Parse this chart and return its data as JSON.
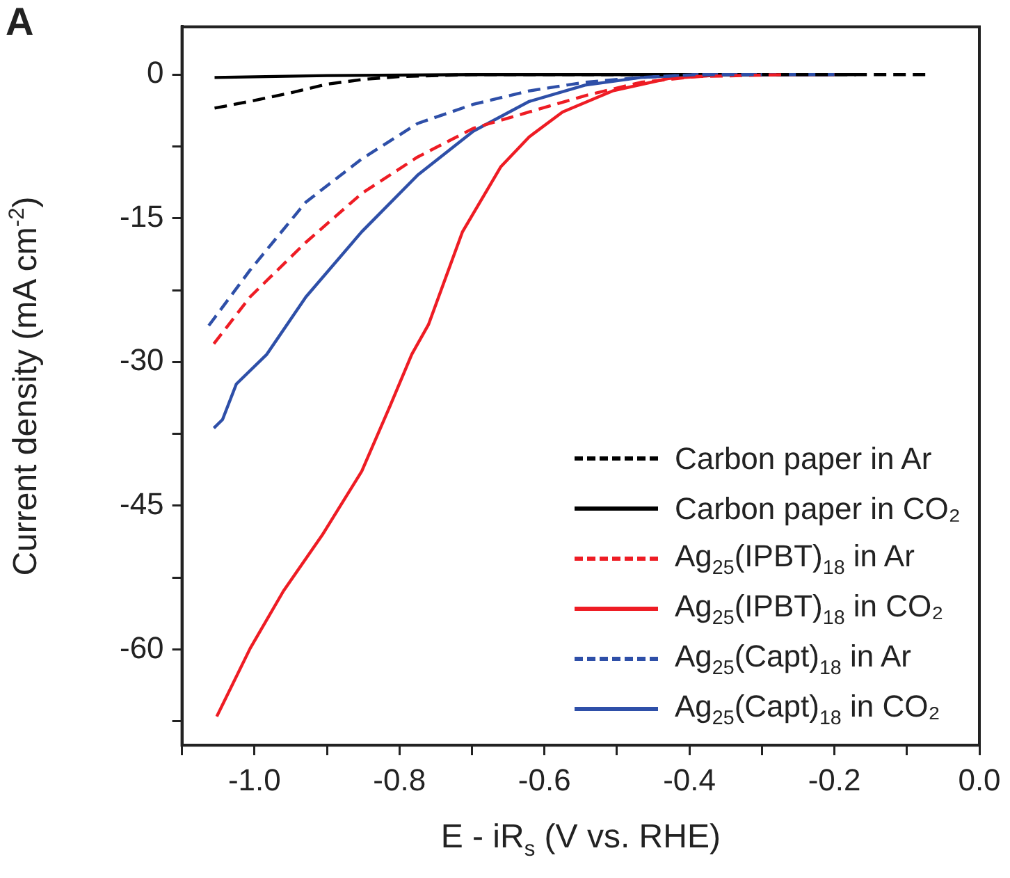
{
  "chart_data": {
    "type": "line",
    "title": "A",
    "xlabel": "E - iR$_{s}$ (V vs. RHE)",
    "ylabel": "Current density (mA cm$^{-2}$)",
    "xlim": [
      -1.1,
      0
    ],
    "xticks": [
      {
        "value": -1.1,
        "label": null
      },
      {
        "value": -1.0,
        "label": "-1.0"
      },
      {
        "value": -0.9,
        "label": null
      },
      {
        "value": -0.8,
        "label": "-0.8"
      },
      {
        "value": -0.7,
        "label": null
      },
      {
        "value": -0.6,
        "label": "-0.6"
      },
      {
        "value": -0.5,
        "label": null
      },
      {
        "value": -0.4,
        "label": "-0.4"
      },
      {
        "value": -0.3,
        "label": null
      },
      {
        "value": -0.2,
        "label": "-0.2"
      },
      {
        "value": -0.1,
        "label": null
      },
      {
        "value": 0,
        "label": "0.0"
      }
    ],
    "ylim": [
      -70,
      5
    ],
    "yticks": [
      0,
      {
        "value": -7.5,
        "label": null
      },
      -15,
      {
        "value": -22.5,
        "label": null
      },
      -30,
      {
        "value": -37.5,
        "label": null
      },
      -45,
      {
        "value": -52.5,
        "label": null
      },
      -60,
      {
        "value": -67.5,
        "label": null
      }
    ],
    "grid": false,
    "legend": "bottom right",
    "marker": "none",
    "series": [
      {
        "name": "Carbon paper in Ar",
        "color": "#000000",
        "line_style": "dashed",
        "x": [
          -1.055,
          -1.0,
          -0.95,
          -0.9,
          -0.85,
          -0.8,
          -0.7,
          -0.5,
          -0.07
        ],
        "values": [
          -3.5,
          -2.7,
          -1.9,
          -1.0,
          -0.5,
          -0.2,
          0,
          0,
          0
        ]
      },
      {
        "name": "Carbon paper in CO₂",
        "color": "#000000",
        "line_style": "solid",
        "x": [
          -1.055,
          -0.9,
          -0.7,
          -0.17
        ],
        "values": [
          -0.3,
          -0.1,
          0,
          0
        ]
      },
      {
        "name": "Ag$_{25}$(IPBT)$_{18}$ in Ar",
        "color": "#ee1c24",
        "line_style": "dashed",
        "x": [
          -1.056,
          -1.006,
          -0.929,
          -0.852,
          -0.775,
          -0.698,
          -0.621,
          -0.544,
          -0.467,
          -0.39,
          -0.27
        ],
        "values": [
          -28.1,
          -23.2,
          -17.5,
          -12.4,
          -8.6,
          -5.6,
          -3.9,
          -2.2,
          -0.8,
          -0.2,
          0
        ]
      },
      {
        "name": "Ag$_{25}$(IPBT)$_{18}$ in CO₂",
        "color": "#ee1c24",
        "line_style": "solid",
        "x": [
          -1.052,
          -1.006,
          -0.96,
          -0.906,
          -0.852,
          -0.813,
          -0.783,
          -0.76,
          -0.713,
          -0.66,
          -0.621,
          -0.575,
          -0.506,
          -0.429,
          -0.35,
          -0.2
        ],
        "values": [
          -67,
          -59.9,
          -53.9,
          -48,
          -41.4,
          -34.6,
          -29.2,
          -26.1,
          -16.4,
          -9.6,
          -6.5,
          -3.9,
          -1.7,
          -0.4,
          0,
          0
        ]
      },
      {
        "name": "Ag$_{25}$(Capt)$_{18}$ in Ar",
        "color": "#2e4fa8",
        "line_style": "dashed",
        "x": [
          -1.063,
          -1.006,
          -0.929,
          -0.852,
          -0.775,
          -0.698,
          -0.621,
          -0.544,
          -0.467,
          -0.39,
          -0.3
        ],
        "values": [
          -26.2,
          -20.4,
          -13.3,
          -8.8,
          -5.1,
          -3.1,
          -1.7,
          -0.8,
          -0.3,
          0,
          0
        ]
      },
      {
        "name": "Ag$_{25}$(Capt)$_{18}$ in CO₂",
        "color": "#2e4fa8",
        "line_style": "solid",
        "x": [
          -1.056,
          -1.044,
          -1.025,
          -0.983,
          -0.929,
          -0.852,
          -0.775,
          -0.698,
          -0.621,
          -0.544,
          -0.467,
          -0.39,
          -0.2
        ],
        "values": [
          -36.9,
          -36.0,
          -32.3,
          -29.2,
          -23.2,
          -16.4,
          -10.5,
          -5.9,
          -2.8,
          -1.1,
          -0.3,
          0,
          0
        ]
      }
    ]
  }
}
